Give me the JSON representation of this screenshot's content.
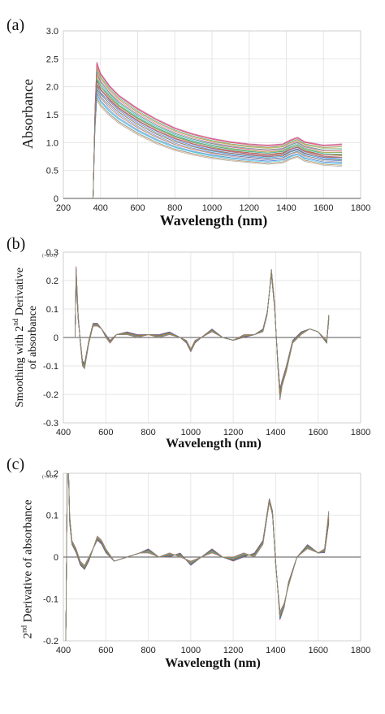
{
  "chart_data": [
    {
      "type": "line",
      "panel_label": "(a)",
      "xlabel": "Wavelength (nm)",
      "ylabel": "Absorbance",
      "xlim": [
        200,
        1800
      ],
      "ylim": [
        0,
        3.0
      ],
      "xticks": [
        "200",
        "400",
        "600",
        "800",
        "1000",
        "1200",
        "1400",
        "1600",
        "1800"
      ],
      "yticks": [
        "0",
        "0.5",
        "1.0",
        "1.5",
        "2.0",
        "2.5",
        "3.0"
      ],
      "grid": true,
      "series": [
        {
          "x": [
            360,
            370,
            380,
            400,
            450,
            500,
            600,
            700,
            800,
            900,
            1000,
            1100,
            1200,
            1300,
            1380,
            1420,
            1460,
            1500,
            1600,
            1700
          ],
          "y": [
            0,
            1.4,
            2.05,
            1.95,
            1.78,
            1.62,
            1.4,
            1.22,
            1.08,
            0.98,
            0.9,
            0.84,
            0.8,
            0.77,
            0.8,
            0.88,
            0.92,
            0.84,
            0.76,
            0.74
          ]
        },
        {
          "x": [
            360,
            370,
            380,
            400,
            450,
            500,
            600,
            700,
            800,
            900,
            1000,
            1100,
            1200,
            1300,
            1380,
            1420,
            1460,
            1500,
            1600,
            1700
          ],
          "y": [
            0,
            1.6,
            2.45,
            2.25,
            2.02,
            1.85,
            1.62,
            1.43,
            1.27,
            1.16,
            1.08,
            1.02,
            0.98,
            0.96,
            0.98,
            1.05,
            1.1,
            1.02,
            0.96,
            0.98
          ]
        },
        {
          "x": [
            360,
            370,
            380,
            400,
            450,
            500,
            600,
            700,
            800,
            900,
            1000,
            1100,
            1200,
            1300,
            1380,
            1420,
            1460,
            1500,
            1600,
            1700
          ],
          "y": [
            0,
            1.2,
            1.75,
            1.62,
            1.45,
            1.32,
            1.12,
            0.96,
            0.84,
            0.76,
            0.7,
            0.66,
            0.63,
            0.6,
            0.62,
            0.68,
            0.72,
            0.65,
            0.58,
            0.56
          ]
        }
      ]
    },
    {
      "type": "line",
      "panel_label": "(b)",
      "scale_note": "(×0.01)",
      "xlabel": "Wavelength (nm)",
      "ylabel_line1": "Smoothing with 2nd Derivative",
      "ylabel_line2": "of absorbance",
      "xlim": [
        400,
        1800
      ],
      "ylim": [
        -0.3,
        0.3
      ],
      "xticks": [
        "400",
        "600",
        "800",
        "1000",
        "1200",
        "1400",
        "1600",
        "1800"
      ],
      "yticks": [
        "0.3",
        "0.2",
        "0.1",
        "0",
        "-0.1",
        "-0.2",
        "-0.3"
      ],
      "grid": true,
      "series": [
        {
          "x": [
            455,
            460,
            470,
            480,
            490,
            500,
            520,
            540,
            560,
            580,
            600,
            620,
            650,
            700,
            750,
            800,
            850,
            900,
            950,
            980,
            1000,
            1020,
            1050,
            1100,
            1150,
            1200,
            1250,
            1300,
            1340,
            1360,
            1380,
            1395,
            1410,
            1420,
            1430,
            1450,
            1480,
            1520,
            1560,
            1600,
            1640,
            1650
          ],
          "y": [
            0,
            0.25,
            0.08,
            -0.02,
            -0.1,
            -0.11,
            -0.02,
            0.04,
            0.04,
            0.03,
            0,
            -0.02,
            0.01,
            0.01,
            0.0,
            0.01,
            0.0,
            0.01,
            0.0,
            -0.01,
            -0.04,
            -0.01,
            0.0,
            0.02,
            0.0,
            -0.01,
            0.01,
            0.01,
            0.02,
            0.08,
            0.24,
            0.12,
            -0.1,
            -0.22,
            -0.17,
            -0.12,
            -0.02,
            0.01,
            0.03,
            0.02,
            -0.01,
            0.08
          ]
        },
        {
          "x": [
            455,
            460,
            470,
            480,
            490,
            500,
            520,
            540,
            560,
            580,
            600,
            620,
            650,
            700,
            750,
            800,
            850,
            900,
            950,
            980,
            1000,
            1020,
            1050,
            1100,
            1150,
            1200,
            1250,
            1300,
            1340,
            1360,
            1380,
            1395,
            1410,
            1420,
            1430,
            1450,
            1480,
            1520,
            1560,
            1600,
            1640,
            1650
          ],
          "y": [
            0,
            0.2,
            0.06,
            -0.01,
            -0.08,
            -0.09,
            -0.01,
            0.05,
            0.05,
            0.03,
            0.01,
            -0.01,
            0.01,
            0.02,
            0.01,
            0.01,
            0.01,
            0.02,
            0.0,
            -0.02,
            -0.05,
            -0.02,
            0.0,
            0.03,
            0.0,
            -0.01,
            0.0,
            0.01,
            0.03,
            0.09,
            0.22,
            0.1,
            -0.08,
            -0.18,
            -0.15,
            -0.1,
            -0.01,
            0.02,
            0.03,
            0.02,
            -0.02,
            0.06
          ]
        }
      ]
    },
    {
      "type": "line",
      "panel_label": "(c)",
      "scale_note": "(×0.01)",
      "xlabel": "Wavelength (nm)",
      "ylabel": "2nd Derivative of absorbance",
      "xlim": [
        400,
        1800
      ],
      "ylim": [
        -0.2,
        0.2
      ],
      "xticks": [
        "400",
        "600",
        "800",
        "1000",
        "1200",
        "1400",
        "1600",
        "1800"
      ],
      "yticks": [
        "0.2",
        "0.1",
        "0",
        "-0.1",
        "-0.2"
      ],
      "grid": true,
      "series": [
        {
          "x": [
            410,
            420,
            430,
            440,
            460,
            480,
            500,
            520,
            540,
            560,
            580,
            600,
            640,
            700,
            760,
            800,
            850,
            900,
            950,
            1000,
            1050,
            1100,
            1150,
            1200,
            1250,
            1300,
            1340,
            1370,
            1385,
            1400,
            1420,
            1440,
            1460,
            1500,
            1550,
            1600,
            1630,
            1650
          ],
          "y": [
            -0.3,
            0.3,
            0.1,
            0.04,
            0.02,
            -0.01,
            -0.02,
            0.0,
            0.02,
            0.05,
            0.04,
            0.02,
            -0.01,
            0.0,
            0.01,
            0.01,
            0.0,
            0.01,
            0.0,
            -0.01,
            0.0,
            0.01,
            0.0,
            0.0,
            0.01,
            0.0,
            0.03,
            0.13,
            0.1,
            -0.02,
            -0.13,
            -0.11,
            -0.07,
            0.0,
            0.02,
            0.01,
            0.02,
            0.11
          ]
        },
        {
          "x": [
            410,
            420,
            430,
            440,
            460,
            480,
            500,
            520,
            540,
            560,
            580,
            600,
            640,
            700,
            760,
            800,
            850,
            900,
            950,
            1000,
            1050,
            1100,
            1150,
            1200,
            1250,
            1300,
            1340,
            1370,
            1385,
            1400,
            1420,
            1440,
            1460,
            1500,
            1550,
            1600,
            1630,
            1650
          ],
          "y": [
            -0.3,
            0.3,
            0.08,
            0.03,
            0.01,
            -0.02,
            -0.03,
            -0.01,
            0.02,
            0.04,
            0.03,
            0.01,
            -0.01,
            0.0,
            0.01,
            0.02,
            0.0,
            0.0,
            0.01,
            -0.02,
            0.0,
            0.02,
            0.0,
            -0.01,
            0.0,
            0.01,
            0.04,
            0.14,
            0.11,
            -0.01,
            -0.15,
            -0.12,
            -0.06,
            0.0,
            0.03,
            0.01,
            0.01,
            0.08
          ]
        }
      ]
    }
  ]
}
